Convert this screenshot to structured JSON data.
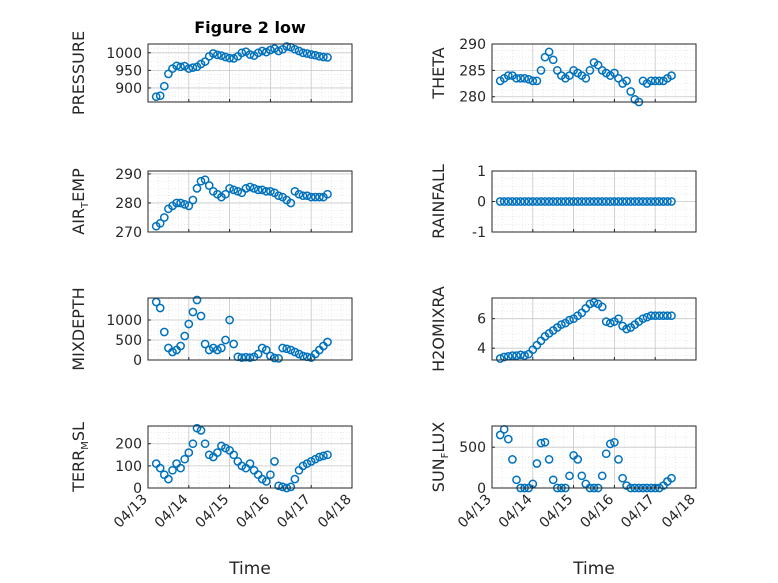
{
  "figure_title": "Figure 2 low",
  "xlabel": "Time",
  "date_ticks": [
    "04/13",
    "04/14",
    "04/15",
    "04/16",
    "04/17",
    "04/18"
  ],
  "colors": {
    "marker": "#0072BD",
    "axis": "#262626",
    "grid": "#c8c8c8"
  },
  "chart_data": [
    {
      "type": "scatter",
      "title": "Figure 2 low",
      "ylabel": "PRESSURE",
      "ylabel_main": "PRESSURE",
      "ylabel_sub": "",
      "ylabel_tail": "",
      "xlim": [
        "04/13",
        "04/18"
      ],
      "ylim": [
        860,
        1025
      ],
      "yticks": [
        900,
        950,
        1000
      ],
      "grid": true,
      "x_days": [
        0.2,
        0.3,
        0.4,
        0.5,
        0.6,
        0.7,
        0.8,
        0.9,
        1.0,
        1.1,
        1.2,
        1.3,
        1.4,
        1.5,
        1.6,
        1.7,
        1.8,
        1.9,
        2.0,
        2.1,
        2.2,
        2.3,
        2.4,
        2.5,
        2.6,
        2.7,
        2.8,
        2.9,
        3.0,
        3.1,
        3.2,
        3.3,
        3.4,
        3.5,
        3.6,
        3.7,
        3.8,
        3.9,
        4.0,
        4.1,
        4.2,
        4.3,
        4.4
      ],
      "values": [
        875,
        878,
        905,
        940,
        955,
        963,
        960,
        962,
        955,
        958,
        960,
        968,
        975,
        990,
        998,
        994,
        992,
        988,
        985,
        984,
        990,
        1000,
        1003,
        995,
        992,
        1000,
        1005,
        1002,
        1008,
        1012,
        1005,
        1010,
        1018,
        1016,
        1010,
        1005,
        1000,
        998,
        995,
        993,
        990,
        988,
        987
      ]
    },
    {
      "type": "scatter",
      "ylabel": "THETA",
      "ylabel_main": "THETA",
      "ylabel_sub": "",
      "ylabel_tail": "",
      "xlim": [
        "04/13",
        "04/18"
      ],
      "ylim": [
        279,
        290
      ],
      "yticks": [
        280,
        285,
        290
      ],
      "grid": true,
      "x_days": [
        0.2,
        0.3,
        0.4,
        0.5,
        0.6,
        0.7,
        0.8,
        0.9,
        1.0,
        1.1,
        1.2,
        1.3,
        1.4,
        1.5,
        1.6,
        1.7,
        1.8,
        1.9,
        2.0,
        2.1,
        2.2,
        2.3,
        2.4,
        2.5,
        2.6,
        2.7,
        2.8,
        2.9,
        3.0,
        3.1,
        3.2,
        3.3,
        3.4,
        3.5,
        3.6,
        3.7,
        3.8,
        3.9,
        4.0,
        4.1,
        4.2,
        4.3,
        4.4
      ],
      "values": [
        283,
        283.5,
        284,
        284,
        283.5,
        283.5,
        283.5,
        283.3,
        283,
        283,
        285,
        287.5,
        288.5,
        287,
        285,
        284,
        283.5,
        284,
        285,
        284.5,
        284,
        283.5,
        285,
        286.5,
        286,
        285,
        284.5,
        284,
        284.5,
        283.5,
        282.5,
        283,
        281,
        279.5,
        279,
        283,
        282.5,
        283,
        283,
        283,
        283,
        283.5,
        284
      ]
    },
    {
      "type": "scatter",
      "ylabel": "AIR_TEMP",
      "ylabel_main": "AIR",
      "ylabel_sub": "T",
      "ylabel_tail": "EMP",
      "xlim": [
        "04/13",
        "04/18"
      ],
      "ylim": [
        270,
        291
      ],
      "yticks": [
        270,
        280,
        290
      ],
      "grid": true,
      "x_days": [
        0.2,
        0.3,
        0.4,
        0.5,
        0.6,
        0.7,
        0.8,
        0.9,
        1.0,
        1.1,
        1.2,
        1.3,
        1.4,
        1.5,
        1.6,
        1.7,
        1.8,
        1.9,
        2.0,
        2.1,
        2.2,
        2.3,
        2.4,
        2.5,
        2.6,
        2.7,
        2.8,
        2.9,
        3.0,
        3.1,
        3.2,
        3.3,
        3.4,
        3.5,
        3.6,
        3.7,
        3.8,
        3.9,
        4.0,
        4.1,
        4.2,
        4.3,
        4.4
      ],
      "values": [
        272,
        273,
        275,
        278,
        279,
        280,
        280,
        279.5,
        279,
        281,
        285,
        287.5,
        288,
        286,
        284,
        283,
        282,
        283,
        285,
        284.5,
        284,
        283.5,
        285,
        285.5,
        285,
        284.5,
        284.5,
        284,
        284,
        283.5,
        282.5,
        282,
        281,
        280,
        284,
        283,
        282.5,
        282.5,
        282,
        282,
        282,
        282,
        283
      ]
    },
    {
      "type": "scatter",
      "ylabel": "RAINFALL",
      "ylabel_main": "RAINFALL",
      "ylabel_sub": "",
      "ylabel_tail": "",
      "xlim": [
        "04/13",
        "04/18"
      ],
      "ylim": [
        -1,
        1
      ],
      "yticks": [
        -1,
        0,
        1
      ],
      "grid": true,
      "x_days": [
        0.2,
        0.3,
        0.4,
        0.5,
        0.6,
        0.7,
        0.8,
        0.9,
        1.0,
        1.1,
        1.2,
        1.3,
        1.4,
        1.5,
        1.6,
        1.7,
        1.8,
        1.9,
        2.0,
        2.1,
        2.2,
        2.3,
        2.4,
        2.5,
        2.6,
        2.7,
        2.8,
        2.9,
        3.0,
        3.1,
        3.2,
        3.3,
        3.4,
        3.5,
        3.6,
        3.7,
        3.8,
        3.9,
        4.0,
        4.1,
        4.2,
        4.3,
        4.4
      ],
      "values": [
        0,
        0,
        0,
        0,
        0,
        0,
        0,
        0,
        0,
        0,
        0,
        0,
        0,
        0,
        0,
        0,
        0,
        0,
        0,
        0,
        0,
        0,
        0,
        0,
        0,
        0,
        0,
        0,
        0,
        0,
        0,
        0,
        0,
        0,
        0,
        0,
        0,
        0,
        0,
        0,
        0,
        0,
        0
      ]
    },
    {
      "type": "scatter",
      "ylabel": "MIXDEPTH",
      "ylabel_main": "MIXDEPTH",
      "ylabel_sub": "",
      "ylabel_tail": "",
      "xlim": [
        "04/13",
        "04/18"
      ],
      "ylim": [
        0,
        1550
      ],
      "yticks": [
        0,
        500,
        1000
      ],
      "grid": true,
      "x_days": [
        0.2,
        0.3,
        0.4,
        0.5,
        0.6,
        0.7,
        0.8,
        0.9,
        1.0,
        1.1,
        1.2,
        1.3,
        1.4,
        1.5,
        1.6,
        1.7,
        1.8,
        1.9,
        2.0,
        2.1,
        2.2,
        2.3,
        2.4,
        2.5,
        2.6,
        2.7,
        2.8,
        2.9,
        3.0,
        3.1,
        3.2,
        3.3,
        3.4,
        3.5,
        3.6,
        3.7,
        3.8,
        3.9,
        4.0,
        4.1,
        4.2,
        4.3,
        4.4
      ],
      "values": [
        1450,
        1300,
        700,
        300,
        200,
        250,
        350,
        600,
        900,
        1200,
        1500,
        1100,
        400,
        250,
        300,
        250,
        300,
        500,
        1000,
        400,
        80,
        60,
        70,
        60,
        80,
        150,
        300,
        250,
        100,
        50,
        40,
        300,
        280,
        250,
        200,
        150,
        100,
        80,
        60,
        150,
        250,
        350,
        450
      ]
    },
    {
      "type": "scatter",
      "ylabel": "H2OMIXRA",
      "ylabel_main": "H2OMIXRA",
      "ylabel_sub": "",
      "ylabel_tail": "",
      "xlim": [
        "04/13",
        "04/18"
      ],
      "ylim": [
        3.2,
        7.4
      ],
      "yticks": [
        4,
        6
      ],
      "grid": true,
      "x_days": [
        0.2,
        0.3,
        0.4,
        0.5,
        0.6,
        0.7,
        0.8,
        0.9,
        1.0,
        1.1,
        1.2,
        1.3,
        1.4,
        1.5,
        1.6,
        1.7,
        1.8,
        1.9,
        2.0,
        2.1,
        2.2,
        2.3,
        2.4,
        2.5,
        2.6,
        2.7,
        2.8,
        2.9,
        3.0,
        3.1,
        3.2,
        3.3,
        3.4,
        3.5,
        3.6,
        3.7,
        3.8,
        3.9,
        4.0,
        4.1,
        4.2,
        4.3,
        4.4
      ],
      "values": [
        3.3,
        3.4,
        3.45,
        3.5,
        3.5,
        3.55,
        3.5,
        3.6,
        3.9,
        4.2,
        4.5,
        4.8,
        5.0,
        5.2,
        5.4,
        5.6,
        5.7,
        5.9,
        6.0,
        6.2,
        6.4,
        6.7,
        7.0,
        7.1,
        7.0,
        6.8,
        5.8,
        5.7,
        5.8,
        6.0,
        5.5,
        5.3,
        5.4,
        5.6,
        5.8,
        6.0,
        6.1,
        6.2,
        6.2,
        6.2,
        6.2,
        6.2,
        6.2
      ]
    },
    {
      "type": "scatter",
      "ylabel": "TERR_MSL",
      "ylabel_main": "TERR",
      "ylabel_sub": "M",
      "ylabel_tail": "SL",
      "xlim": [
        "04/13",
        "04/18"
      ],
      "ylim": [
        0,
        280
      ],
      "yticks": [
        0,
        100,
        200
      ],
      "grid": true,
      "x_days": [
        0.2,
        0.3,
        0.4,
        0.5,
        0.6,
        0.7,
        0.8,
        0.9,
        1.0,
        1.1,
        1.2,
        1.3,
        1.4,
        1.5,
        1.6,
        1.7,
        1.8,
        1.9,
        2.0,
        2.1,
        2.2,
        2.3,
        2.4,
        2.5,
        2.6,
        2.7,
        2.8,
        2.9,
        3.0,
        3.1,
        3.2,
        3.3,
        3.4,
        3.5,
        3.6,
        3.7,
        3.8,
        3.9,
        4.0,
        4.1,
        4.2,
        4.3,
        4.4
      ],
      "values": [
        110,
        90,
        60,
        40,
        80,
        110,
        90,
        130,
        160,
        200,
        270,
        260,
        200,
        150,
        140,
        160,
        190,
        180,
        170,
        150,
        120,
        100,
        90,
        110,
        80,
        60,
        40,
        30,
        60,
        120,
        10,
        5,
        0,
        5,
        40,
        80,
        100,
        110,
        120,
        130,
        140,
        145,
        150
      ]
    },
    {
      "type": "scatter",
      "ylabel": "SUN_FLUX",
      "ylabel_main": "SUN",
      "ylabel_sub": "F",
      "ylabel_tail": "LUX",
      "xlim": [
        "04/13",
        "04/18"
      ],
      "ylim": [
        0,
        760
      ],
      "yticks": [
        0,
        500
      ],
      "grid": true,
      "x_days": [
        0.2,
        0.3,
        0.4,
        0.5,
        0.6,
        0.7,
        0.8,
        0.9,
        1.0,
        1.1,
        1.2,
        1.3,
        1.4,
        1.5,
        1.6,
        1.7,
        1.8,
        1.9,
        2.0,
        2.1,
        2.2,
        2.3,
        2.4,
        2.5,
        2.6,
        2.7,
        2.8,
        2.9,
        3.0,
        3.1,
        3.2,
        3.3,
        3.4,
        3.5,
        3.6,
        3.7,
        3.8,
        3.9,
        4.0,
        4.1,
        4.2,
        4.3,
        4.4
      ],
      "values": [
        650,
        720,
        600,
        350,
        100,
        0,
        0,
        0,
        50,
        300,
        550,
        560,
        350,
        100,
        0,
        0,
        0,
        150,
        400,
        350,
        150,
        50,
        0,
        0,
        0,
        150,
        420,
        540,
        560,
        350,
        120,
        30,
        0,
        0,
        0,
        0,
        0,
        0,
        0,
        0,
        30,
        80,
        120
      ]
    }
  ]
}
